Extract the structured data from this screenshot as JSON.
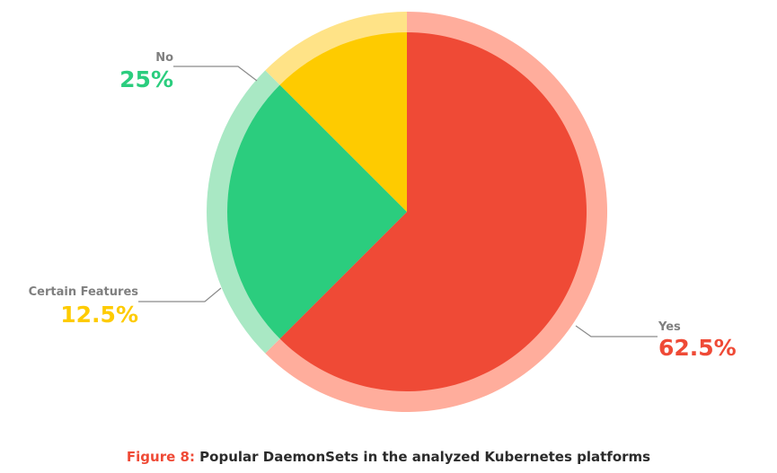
{
  "chart_data": {
    "type": "pie",
    "categories": [
      "Yes",
      "No",
      "Certain Features"
    ],
    "values": [
      62.5,
      25,
      12.5
    ],
    "value_labels": [
      "62.5%",
      "25%",
      "12.5%"
    ],
    "colors": [
      "#ef4a36",
      "#2bcd7e",
      "#fecb00"
    ],
    "ring_colors": [
      "#ffad9c",
      "#a9e8c4",
      "#ffe387"
    ],
    "start_angle_deg": 0,
    "direction": "clockwise",
    "legend": "none",
    "title": ""
  },
  "caption": {
    "prefix": "Figure 8:",
    "text": " Popular DaemonSets in the analyzed Kubernetes platforms"
  }
}
